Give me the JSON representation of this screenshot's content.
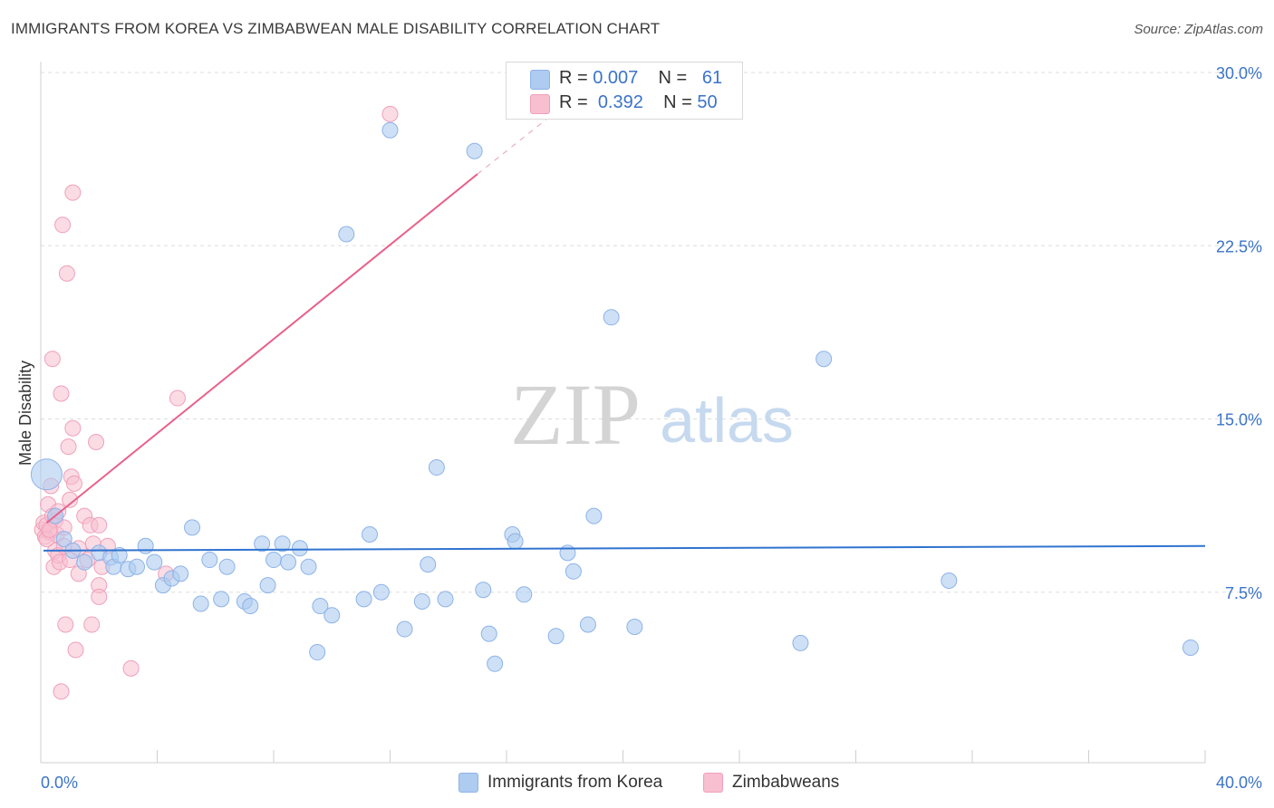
{
  "title": "IMMIGRANTS FROM KOREA VS ZIMBABWEAN MALE DISABILITY CORRELATION CHART",
  "source": "Source: ZipAtlas.com",
  "watermark": {
    "zip": "ZIP",
    "atlas": "atlas"
  },
  "legend": {
    "rows": [
      {
        "r_label": "R = ",
        "r_value": "0.007",
        "n_label": "N = ",
        "n_value": "61"
      },
      {
        "r_label": "R = ",
        "r_value": "0.392",
        "n_label": "N = ",
        "n_value": "50"
      }
    ]
  },
  "bottom_legend": [
    {
      "label": "Immigrants from Korea"
    },
    {
      "label": "Zimbabweans"
    }
  ],
  "colors": {
    "blue_fill": "#aecbf0",
    "blue_stroke": "#8db3e8",
    "blue_line": "#2f73d0",
    "pink_fill": "#f7bfd0",
    "pink_stroke": "#f0a0bb",
    "pink_line": "#e8608a",
    "axis_text": "#3b73c9",
    "grid": "#dddddd"
  },
  "chart_data": {
    "type": "scatter",
    "title": "IMMIGRANTS FROM KOREA VS ZIMBABWEAN MALE DISABILITY CORRELATION CHART",
    "xlabel": "",
    "ylabel": "Male Disability",
    "xlim": [
      0,
      40
    ],
    "ylim": [
      0,
      31
    ],
    "x_tick_labels": [
      "0.0%",
      "40.0%"
    ],
    "y_ticks": [
      7.5,
      15.0,
      22.5,
      30.0
    ],
    "y_tick_labels": [
      "7.5%",
      "15.0%",
      "22.5%",
      "30.0%"
    ],
    "series": [
      {
        "name": "Immigrants from Korea",
        "r": 0.007,
        "n": 61,
        "trend": {
          "x": [
            0.0,
            40.0
          ],
          "y": [
            9.3,
            9.5
          ]
        },
        "points": [
          {
            "x": 0.2,
            "y": 12.6,
            "big": true
          },
          {
            "x": 0.5,
            "y": 10.8
          },
          {
            "x": 0.8,
            "y": 9.8
          },
          {
            "x": 1.1,
            "y": 9.3
          },
          {
            "x": 1.5,
            "y": 8.8
          },
          {
            "x": 2.0,
            "y": 9.2
          },
          {
            "x": 2.4,
            "y": 9.0
          },
          {
            "x": 2.5,
            "y": 8.6
          },
          {
            "x": 2.7,
            "y": 9.1
          },
          {
            "x": 3.0,
            "y": 8.5
          },
          {
            "x": 3.3,
            "y": 8.6
          },
          {
            "x": 3.6,
            "y": 9.5
          },
          {
            "x": 3.9,
            "y": 8.8
          },
          {
            "x": 4.2,
            "y": 7.8
          },
          {
            "x": 4.5,
            "y": 8.1
          },
          {
            "x": 4.8,
            "y": 8.3
          },
          {
            "x": 5.2,
            "y": 10.3
          },
          {
            "x": 5.5,
            "y": 7.0
          },
          {
            "x": 5.8,
            "y": 8.9
          },
          {
            "x": 6.2,
            "y": 7.2
          },
          {
            "x": 6.4,
            "y": 8.6
          },
          {
            "x": 7.0,
            "y": 7.1
          },
          {
            "x": 7.2,
            "y": 6.9
          },
          {
            "x": 7.6,
            "y": 9.6
          },
          {
            "x": 7.8,
            "y": 7.8
          },
          {
            "x": 8.0,
            "y": 8.9
          },
          {
            "x": 8.3,
            "y": 9.6
          },
          {
            "x": 8.5,
            "y": 8.8
          },
          {
            "x": 8.9,
            "y": 9.4
          },
          {
            "x": 9.2,
            "y": 8.6
          },
          {
            "x": 9.5,
            "y": 4.9
          },
          {
            "x": 9.6,
            "y": 6.9
          },
          {
            "x": 10.0,
            "y": 6.5
          },
          {
            "x": 10.5,
            "y": 23.0
          },
          {
            "x": 11.1,
            "y": 7.2
          },
          {
            "x": 11.3,
            "y": 10.0
          },
          {
            "x": 11.7,
            "y": 7.5
          },
          {
            "x": 12.0,
            "y": 27.5
          },
          {
            "x": 12.5,
            "y": 5.9
          },
          {
            "x": 13.1,
            "y": 7.1
          },
          {
            "x": 13.3,
            "y": 8.7
          },
          {
            "x": 13.6,
            "y": 12.9
          },
          {
            "x": 13.9,
            "y": 7.2
          },
          {
            "x": 14.9,
            "y": 26.6
          },
          {
            "x": 15.2,
            "y": 7.6
          },
          {
            "x": 15.4,
            "y": 5.7
          },
          {
            "x": 15.6,
            "y": 4.4
          },
          {
            "x": 16.2,
            "y": 10.0
          },
          {
            "x": 16.3,
            "y": 9.7
          },
          {
            "x": 16.6,
            "y": 7.4
          },
          {
            "x": 17.7,
            "y": 5.6
          },
          {
            "x": 18.1,
            "y": 9.2
          },
          {
            "x": 18.3,
            "y": 8.4
          },
          {
            "x": 18.8,
            "y": 6.1
          },
          {
            "x": 19.0,
            "y": 10.8
          },
          {
            "x": 19.6,
            "y": 19.4
          },
          {
            "x": 20.4,
            "y": 6.0
          },
          {
            "x": 26.9,
            "y": 17.6
          },
          {
            "x": 26.1,
            "y": 5.3
          },
          {
            "x": 31.2,
            "y": 8.0
          },
          {
            "x": 39.5,
            "y": 5.1
          }
        ]
      },
      {
        "name": "Zimbabweans",
        "r": 0.392,
        "n": 50,
        "trend": {
          "x": [
            0.2,
            15.0
          ],
          "y": [
            10.5,
            25.6
          ],
          "dashed_to": [
            18.3,
            28.9
          ]
        },
        "points": [
          {
            "x": 0.05,
            "y": 10.2
          },
          {
            "x": 0.1,
            "y": 10.5
          },
          {
            "x": 0.15,
            "y": 9.9
          },
          {
            "x": 0.2,
            "y": 10.4
          },
          {
            "x": 0.25,
            "y": 11.3
          },
          {
            "x": 0.3,
            "y": 10.1
          },
          {
            "x": 0.35,
            "y": 12.1
          },
          {
            "x": 0.4,
            "y": 10.8
          },
          {
            "x": 0.4,
            "y": 17.6
          },
          {
            "x": 0.45,
            "y": 8.6
          },
          {
            "x": 0.5,
            "y": 10.6
          },
          {
            "x": 0.5,
            "y": 9.3
          },
          {
            "x": 0.55,
            "y": 10.0
          },
          {
            "x": 0.6,
            "y": 9.1
          },
          {
            "x": 0.6,
            "y": 11.0
          },
          {
            "x": 0.65,
            "y": 8.8
          },
          {
            "x": 0.7,
            "y": 3.2
          },
          {
            "x": 0.7,
            "y": 16.1
          },
          {
            "x": 0.75,
            "y": 23.4
          },
          {
            "x": 0.8,
            "y": 9.5
          },
          {
            "x": 0.8,
            "y": 10.3
          },
          {
            "x": 0.85,
            "y": 6.1
          },
          {
            "x": 0.9,
            "y": 21.3
          },
          {
            "x": 0.95,
            "y": 13.8
          },
          {
            "x": 1.0,
            "y": 8.9
          },
          {
            "x": 1.0,
            "y": 11.5
          },
          {
            "x": 1.05,
            "y": 12.5
          },
          {
            "x": 1.1,
            "y": 24.8
          },
          {
            "x": 1.1,
            "y": 14.6
          },
          {
            "x": 1.15,
            "y": 12.2
          },
          {
            "x": 1.2,
            "y": 5.0
          },
          {
            "x": 1.3,
            "y": 8.3
          },
          {
            "x": 1.3,
            "y": 9.4
          },
          {
            "x": 1.5,
            "y": 10.8
          },
          {
            "x": 1.6,
            "y": 8.9
          },
          {
            "x": 1.7,
            "y": 10.4
          },
          {
            "x": 1.75,
            "y": 6.1
          },
          {
            "x": 1.8,
            "y": 9.6
          },
          {
            "x": 1.9,
            "y": 14.0
          },
          {
            "x": 2.0,
            "y": 7.8
          },
          {
            "x": 2.0,
            "y": 7.3
          },
          {
            "x": 2.0,
            "y": 10.4
          },
          {
            "x": 2.1,
            "y": 8.6
          },
          {
            "x": 2.3,
            "y": 9.5
          },
          {
            "x": 3.1,
            "y": 4.2
          },
          {
            "x": 4.3,
            "y": 8.3
          },
          {
            "x": 4.7,
            "y": 15.9
          },
          {
            "x": 12.0,
            "y": 28.2
          },
          {
            "x": 0.2,
            "y": 9.8
          },
          {
            "x": 0.3,
            "y": 10.2
          }
        ]
      }
    ]
  }
}
